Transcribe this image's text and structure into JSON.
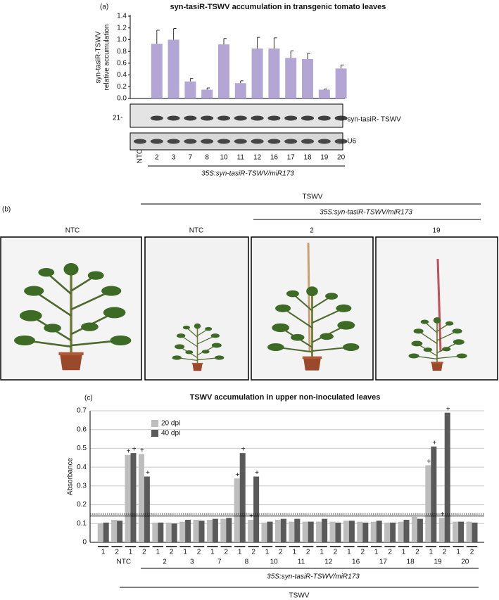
{
  "panel_labels": [
    "(a)",
    "(b)",
    "(c)"
  ],
  "photo_panel": {
    "header": "TSWV",
    "subheader": "35S:syn-tasiR-TSWV/miR173",
    "labels": [
      "NTC",
      "NTC",
      "2",
      "19"
    ]
  },
  "chart_data": [
    {
      "type": "bar",
      "title": "syn-tasiR-TSWV accumulation in transgenic tomato leaves",
      "ylabel": [
        "syn-tasiR-TSWV",
        "relative accumulation"
      ],
      "categories": [
        "NTC",
        "2",
        "3",
        "7",
        "8",
        "10",
        "11",
        "12",
        "16",
        "17",
        "18",
        "19",
        "20"
      ],
      "values": [
        null,
        0.93,
        1.0,
        0.29,
        0.15,
        0.92,
        0.26,
        0.85,
        0.85,
        0.69,
        0.67,
        0.15,
        0.51
      ],
      "errors": [
        null,
        0.23,
        0.19,
        0.05,
        0.03,
        0.1,
        0.04,
        0.19,
        0.18,
        0.12,
        0.1,
        0.01,
        0.06
      ],
      "color": "#b3a6d4",
      "ylim": [
        0,
        1.4
      ],
      "yticks": [
        {
          "value": 0,
          "label": "0.0"
        },
        {
          "value": 0.2,
          "label": "0.2"
        },
        {
          "value": 0.4,
          "label": "0.4"
        },
        {
          "value": 0.6,
          "label": "0.6"
        },
        {
          "value": 0.8,
          "label": "0.8"
        },
        {
          "value": 1.0,
          "label": "1.0"
        },
        {
          "value": 1.2,
          "label": "1.2"
        },
        {
          "value": 1.4,
          "label": "1.4"
        }
      ],
      "blot_labels": [
        "21-",
        "-syn-tasiR- TSWV",
        "-U6"
      ],
      "group_label": "35S:syn-tasiR-TSWV/miR173"
    },
    {
      "type": "grouped_bar",
      "title": "TSWV accumulation in upper non-inoculated leaves",
      "ylabel": "Absorbance",
      "groups": [
        {
          "name": "NTC",
          "replicates": [
            "1",
            "2",
            "1",
            "2"
          ]
        },
        {
          "name": "2",
          "replicates": [
            "1",
            "2"
          ]
        },
        {
          "name": "3",
          "replicates": [
            "1",
            "2"
          ]
        },
        {
          "name": "7",
          "replicates": [
            "1",
            "2"
          ]
        },
        {
          "name": "8",
          "replicates": [
            "1",
            "2"
          ]
        },
        {
          "name": "10",
          "replicates": [
            "1",
            "2"
          ]
        },
        {
          "name": "11",
          "replicates": [
            "1",
            "2"
          ]
        },
        {
          "name": "12",
          "replicates": [
            "1",
            "2"
          ]
        },
        {
          "name": "16",
          "replicates": [
            "1",
            "2"
          ]
        },
        {
          "name": "17",
          "replicates": [
            "1",
            "2"
          ]
        },
        {
          "name": "18",
          "replicates": [
            "1",
            "2"
          ]
        },
        {
          "name": "19",
          "replicates": [
            "1",
            "2"
          ]
        },
        {
          "name": "20",
          "replicates": [
            "1",
            "2"
          ]
        }
      ],
      "series": [
        {
          "name": "20 dpi",
          "color": "#bdbdbd",
          "values": [
            0.1,
            0.12,
            0.465,
            0.47,
            0.105,
            0.105,
            0.11,
            0.12,
            0.12,
            0.125,
            0.34,
            0.12,
            0.105,
            0.12,
            0.11,
            0.11,
            0.11,
            0.11,
            0.115,
            0.11,
            0.11,
            0.105,
            0.11,
            0.135,
            0.41,
            0.13,
            0.11,
            0.11
          ],
          "markers": [
            null,
            null,
            "+",
            "+",
            null,
            null,
            null,
            null,
            null,
            null,
            "+",
            "+",
            null,
            null,
            null,
            null,
            null,
            null,
            null,
            null,
            null,
            null,
            null,
            null,
            "+",
            "+",
            null,
            null
          ]
        },
        {
          "name": "40 dpi",
          "color": "#5a5a5a",
          "values": [
            0.105,
            0.115,
            0.475,
            0.35,
            0.105,
            0.1,
            0.12,
            0.115,
            0.125,
            0.13,
            0.475,
            0.35,
            0.11,
            0.125,
            0.125,
            0.11,
            0.125,
            0.105,
            0.115,
            0.105,
            0.115,
            0.105,
            0.12,
            0.125,
            0.51,
            0.69,
            0.11,
            0.105
          ],
          "markers": [
            null,
            null,
            "+",
            "+",
            null,
            null,
            null,
            null,
            null,
            null,
            "+",
            "+",
            null,
            null,
            null,
            null,
            null,
            null,
            null,
            null,
            null,
            null,
            null,
            null,
            "+",
            "+",
            null,
            null
          ]
        }
      ],
      "ylim": [
        0,
        0.7
      ],
      "yticks": [
        0,
        0.1,
        0.2,
        0.3,
        0.4,
        0.5,
        0.6,
        0.7
      ],
      "grid": true,
      "reference_lines": [
        {
          "value": 0.14,
          "style": "solid"
        },
        {
          "value": 0.15,
          "style": "dotted"
        }
      ],
      "group_label": "35S:syn-tasiR-TSWV/miR173",
      "treatment_label": "TSWV"
    }
  ]
}
